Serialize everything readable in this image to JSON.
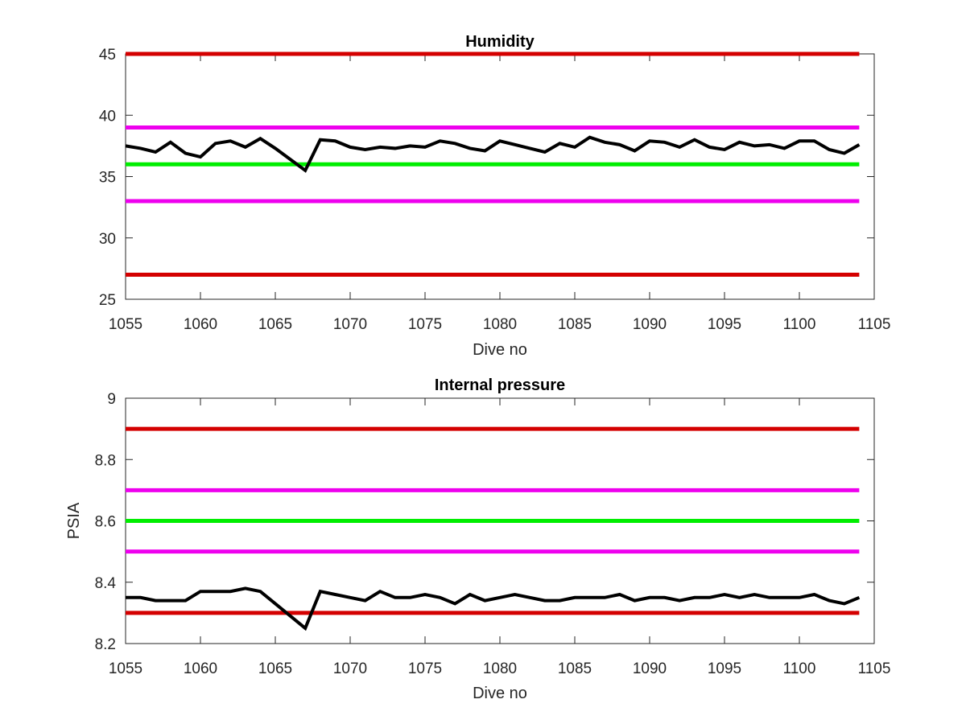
{
  "chart_data": [
    {
      "type": "line",
      "title": "Humidity",
      "xlabel": "Dive no",
      "ylabel": "",
      "xlim": [
        1055,
        1105
      ],
      "ylim": [
        25,
        45
      ],
      "xticks": [
        1055,
        1060,
        1065,
        1070,
        1075,
        1080,
        1085,
        1090,
        1095,
        1100,
        1105
      ],
      "yticks": [
        25,
        30,
        35,
        40,
        45
      ],
      "grid": false,
      "reference_lines": [
        {
          "y": 45,
          "color": "#d40000"
        },
        {
          "y": 39,
          "color": "#ee00ee"
        },
        {
          "y": 36,
          "color": "#00ee00"
        },
        {
          "y": 33,
          "color": "#ee00ee"
        },
        {
          "y": 27,
          "color": "#d40000"
        }
      ],
      "series": [
        {
          "color": "#000000",
          "x": [
            1055,
            1056,
            1057,
            1058,
            1059,
            1060,
            1061,
            1062,
            1063,
            1064,
            1065,
            1066,
            1067,
            1068,
            1069,
            1070,
            1071,
            1072,
            1073,
            1074,
            1075,
            1076,
            1077,
            1078,
            1079,
            1080,
            1081,
            1082,
            1083,
            1084,
            1085,
            1086,
            1087,
            1088,
            1089,
            1090,
            1091,
            1092,
            1093,
            1094,
            1095,
            1096,
            1097,
            1098,
            1099,
            1100,
            1101,
            1102,
            1103,
            1104
          ],
          "values": [
            37.5,
            37.3,
            37.0,
            37.8,
            36.9,
            36.6,
            37.7,
            37.9,
            37.4,
            38.1,
            37.3,
            36.4,
            35.5,
            38.0,
            37.9,
            37.4,
            37.2,
            37.4,
            37.3,
            37.5,
            37.4,
            37.9,
            37.7,
            37.3,
            37.1,
            37.9,
            37.6,
            37.3,
            37.0,
            37.7,
            37.4,
            38.2,
            37.8,
            37.6,
            37.1,
            37.9,
            37.8,
            37.4,
            38.0,
            37.4,
            37.2,
            37.8,
            37.5,
            37.6,
            37.3,
            37.9,
            37.9,
            37.2,
            36.9,
            37.6
          ]
        }
      ]
    },
    {
      "type": "line",
      "title": "Internal pressure",
      "xlabel": "Dive no",
      "ylabel": "PSIA",
      "xlim": [
        1055,
        1105
      ],
      "ylim": [
        8.2,
        9.0
      ],
      "xticks": [
        1055,
        1060,
        1065,
        1070,
        1075,
        1080,
        1085,
        1090,
        1095,
        1100,
        1105
      ],
      "yticks": [
        8.2,
        8.4,
        8.6,
        8.8,
        9.0
      ],
      "ytick_labels": [
        "8.2",
        "8.4",
        "8.6",
        "8.8",
        "9"
      ],
      "grid": false,
      "reference_lines": [
        {
          "y": 8.9,
          "color": "#d40000"
        },
        {
          "y": 8.7,
          "color": "#ee00ee"
        },
        {
          "y": 8.6,
          "color": "#00ee00"
        },
        {
          "y": 8.5,
          "color": "#ee00ee"
        },
        {
          "y": 8.3,
          "color": "#d40000"
        }
      ],
      "series": [
        {
          "color": "#000000",
          "x": [
            1055,
            1056,
            1057,
            1058,
            1059,
            1060,
            1061,
            1062,
            1063,
            1064,
            1065,
            1066,
            1067,
            1068,
            1069,
            1070,
            1071,
            1072,
            1073,
            1074,
            1075,
            1076,
            1077,
            1078,
            1079,
            1080,
            1081,
            1082,
            1083,
            1084,
            1085,
            1086,
            1087,
            1088,
            1089,
            1090,
            1091,
            1092,
            1093,
            1094,
            1095,
            1096,
            1097,
            1098,
            1099,
            1100,
            1101,
            1102,
            1103,
            1104
          ],
          "values": [
            8.35,
            8.35,
            8.34,
            8.34,
            8.34,
            8.37,
            8.37,
            8.37,
            8.38,
            8.37,
            8.33,
            8.29,
            8.25,
            8.37,
            8.36,
            8.35,
            8.34,
            8.37,
            8.35,
            8.35,
            8.36,
            8.35,
            8.33,
            8.36,
            8.34,
            8.35,
            8.36,
            8.35,
            8.34,
            8.34,
            8.35,
            8.35,
            8.35,
            8.36,
            8.34,
            8.35,
            8.35,
            8.34,
            8.35,
            8.35,
            8.36,
            8.35,
            8.36,
            8.35,
            8.35,
            8.35,
            8.36,
            8.34,
            8.33,
            8.35
          ]
        }
      ]
    }
  ]
}
